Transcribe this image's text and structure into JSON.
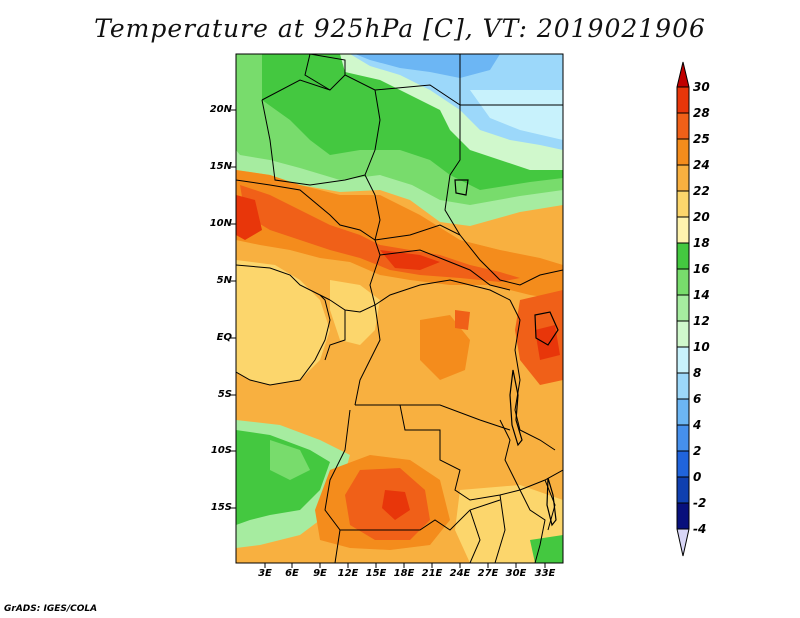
{
  "title": "Temperature at 925hPa [C], VT: 2019021906",
  "credit": "GrADS: IGES/COLA",
  "lat_labels": [
    "20N",
    "15N",
    "10N",
    "5N",
    "EQ",
    "5S",
    "10S",
    "15S"
  ],
  "lon_labels": [
    "3E",
    "6E",
    "9E",
    "12E",
    "15E",
    "18E",
    "21E",
    "24E",
    "27E",
    "30E",
    "33E"
  ],
  "colorbar": {
    "labels": [
      "30",
      "28",
      "25",
      "24",
      "22",
      "20",
      "18",
      "16",
      "14",
      "12",
      "10",
      "8",
      "6",
      "4",
      "2",
      "0",
      "-2",
      "-4"
    ],
    "colors": [
      "#c00000",
      "#e8360a",
      "#f06018",
      "#f48c1c",
      "#f8b040",
      "#fcd66c",
      "#fef3ae",
      "#44c840",
      "#78dc6c",
      "#a6eca0",
      "#d0f8cc",
      "#c8f2fc",
      "#9cd8fa",
      "#6cb6f4",
      "#4690ec",
      "#2064dc",
      "#1040b0",
      "#08107c",
      "#d8d6f6"
    ]
  }
}
